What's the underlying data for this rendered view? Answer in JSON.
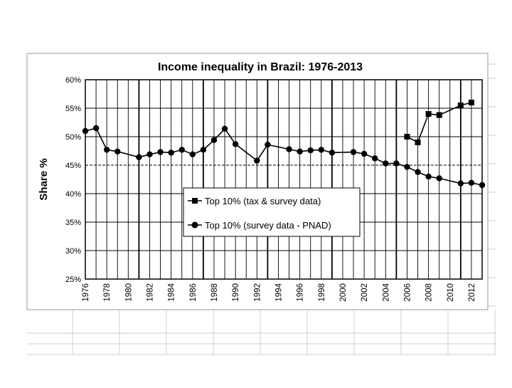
{
  "chart_data": {
    "type": "line",
    "title": "Income inequality in Brazil: 1976-2013",
    "xlabel": "",
    "ylabel": "Share %",
    "xlim": [
      1976,
      2013
    ],
    "ylim": [
      25,
      60
    ],
    "yticks": [
      25,
      30,
      35,
      40,
      45,
      50,
      55,
      60
    ],
    "ytick_labels": [
      "25%",
      "30%",
      "35%",
      "40%",
      "45%",
      "50%",
      "55%",
      "60%"
    ],
    "xticks": [
      1976,
      1978,
      1980,
      1982,
      1984,
      1986,
      1988,
      1990,
      1992,
      1994,
      1996,
      1998,
      2000,
      2002,
      2004,
      2006,
      2008,
      2010,
      2012
    ],
    "xtick_labels": [
      "1976",
      "1978",
      "1980",
      "1982",
      "1984",
      "1986",
      "1988",
      "1990",
      "1992",
      "1994",
      "1996",
      "1998",
      "2000",
      "2002",
      "2004",
      "2006",
      "2008",
      "2010",
      "2012"
    ],
    "grid": true,
    "legend_position": "center",
    "series": [
      {
        "name": "Top 10% (tax & survey data)",
        "marker": "square",
        "color": "#000000",
        "x": [
          2006,
          2007,
          2008,
          2009,
          2011,
          2012
        ],
        "values": [
          50.0,
          49.0,
          54.0,
          53.8,
          55.5,
          56.0
        ]
      },
      {
        "name": "Top 10% (survey data - PNAD)",
        "marker": "circle",
        "color": "#000000",
        "x": [
          1976,
          1977,
          1978,
          1979,
          1981,
          1982,
          1983,
          1984,
          1985,
          1986,
          1987,
          1988,
          1989,
          1990,
          1992,
          1993,
          1995,
          1996,
          1997,
          1998,
          1999,
          2001,
          2002,
          2003,
          2004,
          2005,
          2006,
          2007,
          2008,
          2009,
          2011,
          2012,
          2013
        ],
        "values": [
          51.0,
          51.5,
          47.7,
          47.4,
          46.4,
          46.9,
          47.3,
          47.2,
          47.7,
          46.9,
          47.7,
          49.4,
          51.4,
          48.7,
          45.8,
          48.6,
          47.8,
          47.4,
          47.6,
          47.7,
          47.2,
          47.3,
          47.0,
          46.2,
          45.3,
          45.3,
          44.7,
          43.8,
          43.0,
          42.7,
          41.8,
          41.9,
          41.5
        ]
      }
    ]
  }
}
